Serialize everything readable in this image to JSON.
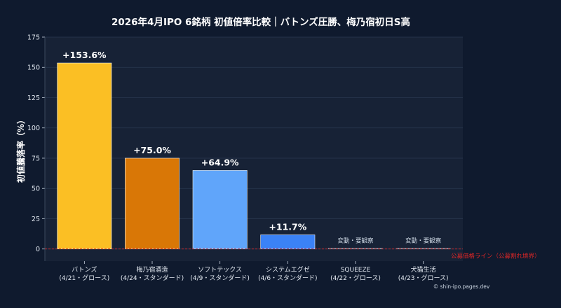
{
  "chart_data": {
    "type": "bar",
    "title": "2026年4月IPO 6銘柄 初値倍率比較｜バトンズ圧勝、梅乃宿初日S高",
    "ylabel": "初値騰落率（%）",
    "xlabel": "",
    "ylim": [
      -10,
      175
    ],
    "yticks": [
      0,
      25,
      50,
      75,
      100,
      125,
      150,
      175
    ],
    "grid": true,
    "categories": [
      {
        "name": "バトンズ",
        "sub": "(4/21・グロース)"
      },
      {
        "name": "梅乃宿酒造",
        "sub": "(4/24・スタンダード)"
      },
      {
        "name": "ソフトテックス",
        "sub": "(4/9・スタンダード)"
      },
      {
        "name": "システムエグゼ",
        "sub": "(4/6・スタンダード)"
      },
      {
        "name": "SQUEEZE",
        "sub": "(4/22・グロース)"
      },
      {
        "name": "犬猫生活",
        "sub": "(4/23・グロース)"
      }
    ],
    "values": [
      153.6,
      75.0,
      64.9,
      11.7,
      0,
      0
    ],
    "data_labels": [
      "+153.6%",
      "+75.0%",
      "+64.9%",
      "+11.7%",
      "変動・要観察",
      "変動・要観察"
    ],
    "colors": [
      "#fbbf24",
      "#d97706",
      "#60a5fa",
      "#3b82f6",
      "#94a3b8",
      "#94a3b8"
    ],
    "reference_line": {
      "value": 0,
      "label": "公募価格ライン（公募割れ境界）",
      "color": "#dc2626"
    }
  },
  "credit": "© shin-ipo.pages.dev"
}
